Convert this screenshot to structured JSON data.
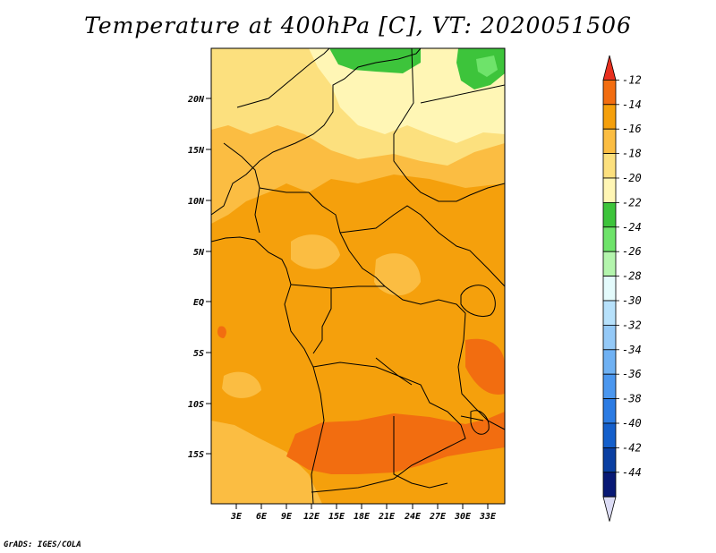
{
  "title": "Temperature at 400hPa [C], VT: 2020051506",
  "credit": "GrADS: IGES/COLA",
  "map": {
    "lat_labels": [
      "20N",
      "15N",
      "10N",
      "5N",
      "EQ",
      "5S",
      "10S",
      "15S"
    ],
    "lon_labels": [
      "3E",
      "6E",
      "9E",
      "12E",
      "15E",
      "18E",
      "21E",
      "24E",
      "27E",
      "30E",
      "33E"
    ]
  },
  "colorbar": {
    "labels": [
      "-12",
      "-14",
      "-16",
      "-18",
      "-20",
      "-22",
      "-24",
      "-26",
      "-28",
      "-30",
      "-32",
      "-34",
      "-36",
      "-38",
      "-40",
      "-42",
      "-44"
    ],
    "colors": [
      "#e8301f",
      "#f26d10",
      "#f5a00c",
      "#fbbd42",
      "#fce07e",
      "#fff6b5",
      "#3dc43b",
      "#6ee36a",
      "#b4f5ad",
      "#e4fbfc",
      "#b7e1fb",
      "#94c9f7",
      "#6fb1f3",
      "#4b97ef",
      "#2b7be3",
      "#145fcb",
      "#0a3fa2",
      "#081975",
      "#dcdcf5"
    ]
  }
}
